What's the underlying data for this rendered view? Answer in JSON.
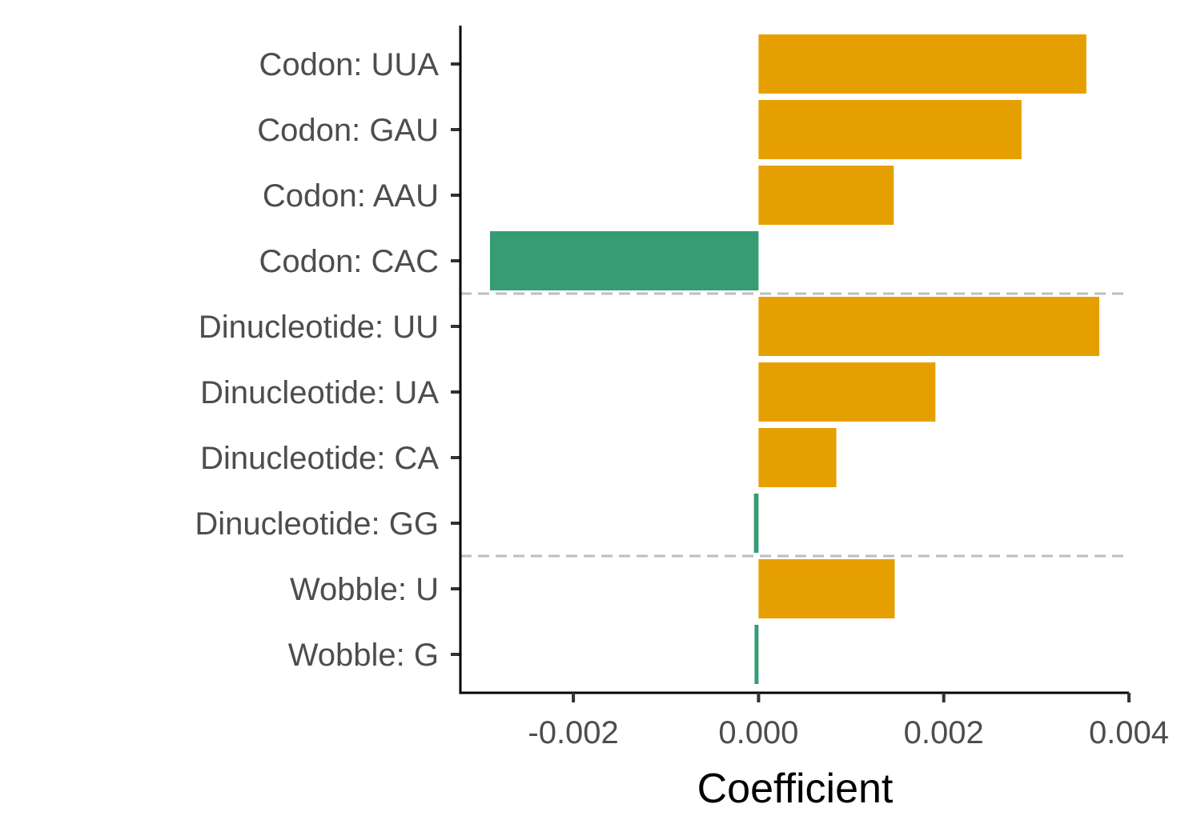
{
  "chart_data": {
    "type": "bar",
    "orientation": "horizontal",
    "categories": [
      "Codon: UUA",
      "Codon: GAU",
      "Codon: AAU",
      "Codon: CAC",
      "Dinucleotide: UU",
      "Dinucleotide: UA",
      "Dinucleotide: CA",
      "Dinucleotide: GG",
      "Wobble: U",
      "Wobble: G"
    ],
    "values": [
      0.00354,
      0.00284,
      0.00146,
      -0.0029,
      0.00368,
      0.00191,
      0.00084,
      -5e-05,
      0.00147,
      -4e-05
    ],
    "xlabel": "Coefficient",
    "ylabel": "",
    "title": "",
    "xlim": [
      -0.00322,
      0.004
    ],
    "xticks": [
      -0.002,
      0.0,
      0.002,
      0.004
    ],
    "xtick_labels": [
      "-0.002",
      "0.000",
      "0.002",
      "0.004"
    ],
    "group_separators_after_index": [
      3,
      7
    ],
    "colors": {
      "positive": "#E69F00",
      "negative": "#359C73",
      "separator": "#BEBEBE",
      "axis": "#000000"
    },
    "grid": false,
    "legend": "none"
  }
}
